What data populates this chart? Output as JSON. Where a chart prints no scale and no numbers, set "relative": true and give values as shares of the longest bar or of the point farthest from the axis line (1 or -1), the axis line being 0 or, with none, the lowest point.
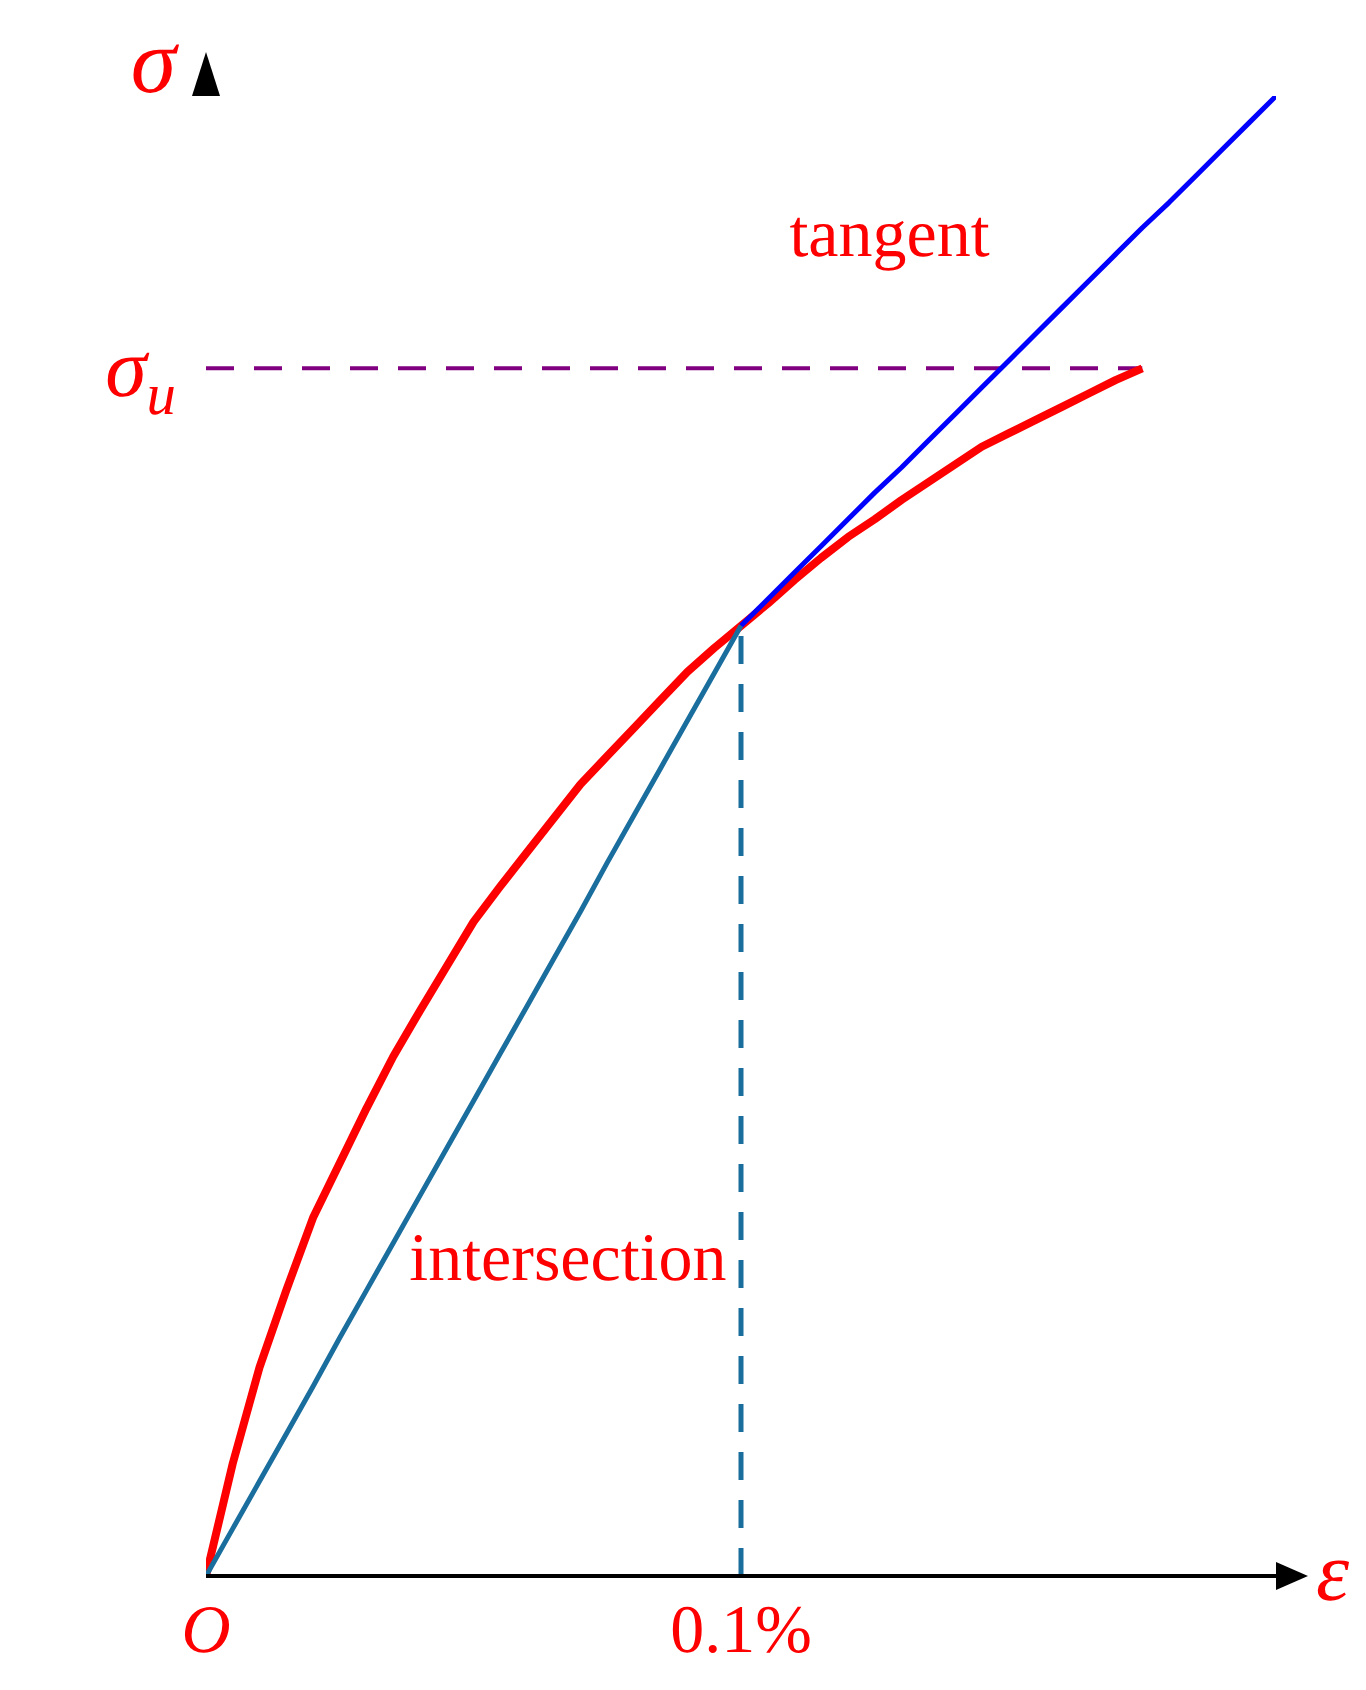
{
  "chart_data": {
    "type": "line",
    "relative": true,
    "xlabel": "ε",
    "ylabel": "σ",
    "categories": [
      "O",
      null,
      null,
      null,
      null,
      null,
      null,
      null,
      null,
      null,
      null,
      null,
      null,
      null,
      null,
      null,
      null,
      null,
      null,
      null,
      "0.1%",
      null,
      null,
      null,
      null,
      null,
      null,
      null,
      null,
      null,
      null,
      null,
      null,
      null,
      null,
      null,
      null,
      null,
      null,
      null,
      null
    ],
    "series": [
      {
        "color": "#ff0000",
        "values": [
          0,
          0.076,
          0.141,
          0.193,
          0.242,
          0.279,
          0.316,
          0.351,
          0.382,
          0.412,
          0.442,
          0.466,
          0.489,
          0.512,
          0.535,
          0.554,
          0.573,
          0.592,
          0.611,
          0.627,
          0.642,
          0.657,
          0.673,
          0.688,
          0.702,
          0.714,
          0.727,
          0.739,
          0.751,
          0.763,
          0.772,
          0.781,
          0.79,
          0.799,
          0.808,
          0.816,
          null,
          null,
          null,
          null,
          null
        ]
      },
      {
        "color": "#0000ff",
        "values": [
          null,
          null,
          null,
          null,
          null,
          null,
          null,
          null,
          null,
          null,
          null,
          null,
          null,
          null,
          null,
          null,
          null,
          null,
          null,
          null,
          0.642,
          0.66,
          0.678,
          0.696,
          0.714,
          0.732,
          0.749,
          0.767,
          0.785,
          0.803,
          0.821,
          0.839,
          0.857,
          0.875,
          0.893,
          0.911,
          0.928,
          0.946,
          0.964,
          0.982,
          1
        ]
      },
      {
        "color": "#1a6e9e",
        "values": [
          0,
          0.032,
          0.064,
          0.096,
          0.128,
          0.161,
          0.193,
          0.225,
          0.257,
          0.289,
          0.321,
          0.353,
          0.385,
          0.417,
          0.449,
          0.482,
          0.514,
          0.546,
          0.578,
          0.61,
          0.642,
          null,
          null,
          null,
          null,
          null,
          null,
          null,
          null,
          null,
          null,
          null,
          null,
          null,
          null,
          null,
          null,
          null,
          null,
          null,
          null
        ]
      }
    ],
    "ref_lines": [
      {
        "axis": "y",
        "value": 0.816,
        "label": "σ$_{u}$",
        "color": "#800080",
        "line_style": "dashed"
      },
      {
        "axis": "x",
        "value": "0.1%",
        "color": "#1a6e9e",
        "line_style": "dashed"
      }
    ],
    "annotations": [
      "tangent",
      "intersection"
    ],
    "marker": "none"
  }
}
